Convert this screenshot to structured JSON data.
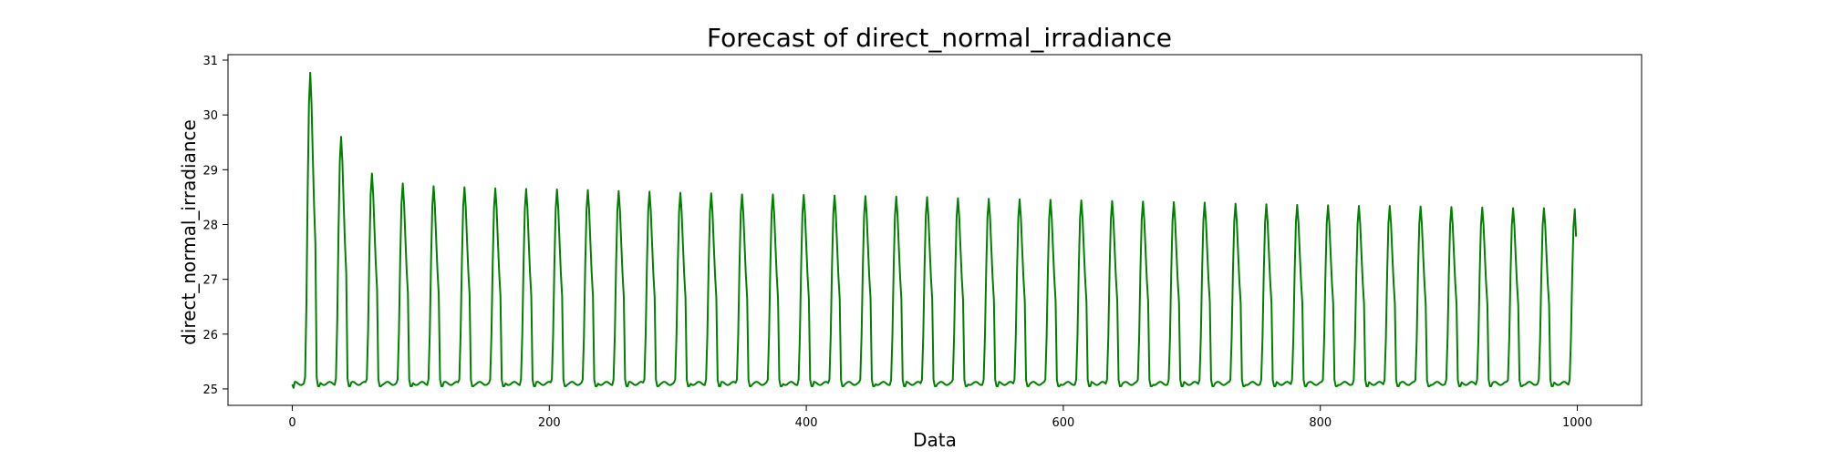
{
  "chart_data": {
    "type": "line",
    "title": "Forecast of direct_normal_irradiance",
    "xlabel": "Data",
    "ylabel": "direct_normal_irradiance",
    "xlim": [
      -50,
      1050
    ],
    "ylim": [
      24.7,
      31.1
    ],
    "xticks": [
      0,
      200,
      400,
      600,
      800,
      1000
    ],
    "yticks": [
      25,
      26,
      27,
      28,
      29,
      30,
      31
    ],
    "grid": false,
    "legend": "none",
    "series": [
      {
        "color": "#008000",
        "sampling": "x from 0 to 999 in steps of 1",
        "baseline": 25.1,
        "period": 24,
        "peak_x": [
          14,
          38,
          62,
          86,
          110,
          134,
          158,
          182,
          206,
          230,
          254,
          278,
          302,
          326,
          350,
          374,
          398,
          422,
          446,
          470,
          494,
          518,
          542,
          566,
          590,
          614,
          638,
          662,
          686,
          710,
          734,
          758,
          782,
          806,
          830,
          854,
          878,
          902,
          926,
          950,
          974,
          998
        ],
        "peak_y": [
          30.77,
          29.6,
          28.93,
          28.75,
          28.7,
          28.68,
          28.66,
          28.65,
          28.64,
          28.63,
          28.61,
          28.6,
          28.58,
          28.57,
          28.55,
          28.55,
          28.54,
          28.53,
          28.52,
          28.51,
          28.5,
          28.48,
          28.47,
          28.46,
          28.45,
          28.44,
          28.43,
          28.42,
          28.41,
          28.4,
          28.38,
          28.37,
          28.36,
          28.35,
          28.34,
          28.34,
          28.33,
          28.32,
          28.31,
          28.3,
          28.3,
          28.28
        ],
        "last_y": 27.78
      }
    ]
  }
}
